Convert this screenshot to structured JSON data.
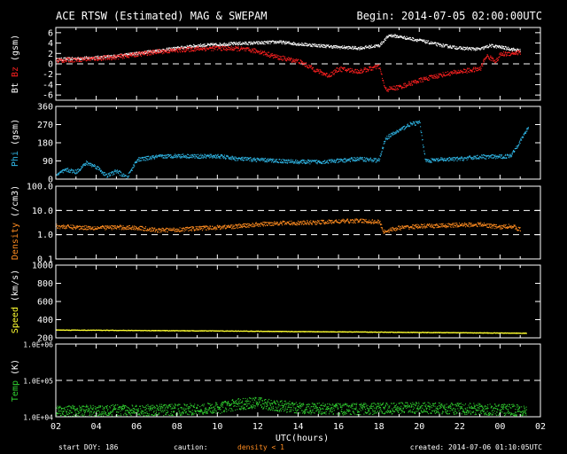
{
  "header": {
    "title": "ACE RTSW (Estimated) MAG & SWEPAM",
    "begin": "Begin: 2014-07-05 02:00:00UTC"
  },
  "footer": {
    "start_doy": "start DOY: 186",
    "caution": "caution:",
    "caution_note": "density < 1",
    "created": "created: 2014-07-06 01:10:05UTC"
  },
  "colors": {
    "background": "#000000",
    "axes": "#ffffff",
    "bt": "#ffffff",
    "bz": "#ff2020",
    "phi": "#30b8e8",
    "density": "#ff8c20",
    "speed": "#ffff30",
    "temp": "#30d030"
  },
  "chart_data": {
    "type": "scatter",
    "xlabel": "UTC(hours)",
    "x_ticks": [
      "02",
      "04",
      "06",
      "08",
      "10",
      "12",
      "14",
      "16",
      "18",
      "20",
      "22",
      "00",
      "02"
    ],
    "xlim": [
      0,
      24
    ],
    "panels": [
      {
        "id": "mag",
        "ylabel_parts": [
          {
            "text": "Bt",
            "color": "#ffffff"
          },
          {
            "text": "Bz",
            "color": "#ff2020"
          },
          {
            "text": "(gsm)",
            "color": "#ffffff"
          }
        ],
        "ylim": [
          -7,
          7
        ],
        "scale": "linear",
        "y_ticks": [
          {
            "v": 6,
            "label": "6"
          },
          {
            "v": 4,
            "label": "4"
          },
          {
            "v": 2,
            "label": "2"
          },
          {
            "v": 0,
            "label": "0"
          },
          {
            "v": -2,
            "label": "-2"
          },
          {
            "v": -4,
            "label": "-4"
          },
          {
            "v": -6,
            "label": "-6"
          }
        ],
        "dashed": [
          0
        ],
        "series": [
          {
            "name": "Bt",
            "color": "#ffffff",
            "style": "line",
            "noise": 0.3,
            "points": [
              [
                0,
                0.8
              ],
              [
                1,
                1.0
              ],
              [
                2,
                1.2
              ],
              [
                3,
                1.5
              ],
              [
                4,
                2.0
              ],
              [
                5,
                2.5
              ],
              [
                6,
                3.0
              ],
              [
                7,
                3.5
              ],
              [
                8,
                3.7
              ],
              [
                9,
                3.9
              ],
              [
                10,
                4.0
              ],
              [
                11,
                4.2
              ],
              [
                12,
                3.8
              ],
              [
                13,
                3.5
              ],
              [
                14,
                3.2
              ],
              [
                15,
                3.0
              ],
              [
                16,
                3.5
              ],
              [
                16.5,
                5.5
              ],
              [
                17,
                5.2
              ],
              [
                18,
                4.5
              ],
              [
                19,
                3.6
              ],
              [
                20,
                3.0
              ],
              [
                21,
                2.8
              ],
              [
                21.5,
                3.5
              ],
              [
                22,
                3.2
              ],
              [
                23,
                2.5
              ]
            ]
          },
          {
            "name": "Bz",
            "color": "#ff2020",
            "style": "line",
            "noise": 0.45,
            "points": [
              [
                0,
                0.6
              ],
              [
                1,
                0.8
              ],
              [
                2,
                1.0
              ],
              [
                3,
                1.3
              ],
              [
                4,
                1.8
              ],
              [
                5,
                2.3
              ],
              [
                6,
                2.6
              ],
              [
                7,
                2.9
              ],
              [
                8,
                3.0
              ],
              [
                9,
                2.9
              ],
              [
                10,
                2.4
              ],
              [
                11,
                1.2
              ],
              [
                12,
                0.5
              ],
              [
                12.5,
                -0.5
              ],
              [
                13,
                -1.5
              ],
              [
                13.5,
                -2.3
              ],
              [
                14,
                -1.0
              ],
              [
                15,
                -1.5
              ],
              [
                16,
                -0.5
              ],
              [
                16.3,
                -5.0
              ],
              [
                17,
                -4.5
              ],
              [
                18,
                -3.2
              ],
              [
                19,
                -2.2
              ],
              [
                20,
                -1.5
              ],
              [
                21,
                -1.0
              ],
              [
                21.3,
                1.5
              ],
              [
                21.8,
                0.5
              ],
              [
                22,
                1.8
              ],
              [
                23,
                2.2
              ]
            ]
          }
        ]
      },
      {
        "id": "phi",
        "ylabel_parts": [
          {
            "text": "Phi",
            "color": "#30b8e8"
          },
          {
            "text": "(gsm)",
            "color": "#ffffff"
          }
        ],
        "ylim": [
          0,
          360
        ],
        "scale": "linear",
        "y_ticks": [
          {
            "v": 360,
            "label": "360"
          },
          {
            "v": 270,
            "label": "270"
          },
          {
            "v": 180,
            "label": "180"
          },
          {
            "v": 90,
            "label": "90"
          },
          {
            "v": 0,
            "label": "0"
          }
        ],
        "dashed": [],
        "series": [
          {
            "name": "Phi",
            "color": "#30b8e8",
            "style": "line",
            "noise": 10,
            "points": [
              [
                0,
                20
              ],
              [
                0.5,
                45
              ],
              [
                1,
                35
              ],
              [
                1.5,
                80
              ],
              [
                2,
                60
              ],
              [
                2.5,
                15
              ],
              [
                3,
                40
              ],
              [
                3.5,
                5
              ],
              [
                4,
                95
              ],
              [
                5,
                110
              ],
              [
                6,
                115
              ],
              [
                7,
                112
              ],
              [
                8,
                113
              ],
              [
                9,
                100
              ],
              [
                10,
                95
              ],
              [
                11,
                90
              ],
              [
                12,
                85
              ],
              [
                13,
                85
              ],
              [
                14,
                90
              ],
              [
                15,
                100
              ],
              [
                16,
                92
              ],
              [
                16.3,
                200
              ],
              [
                16.8,
                230
              ],
              [
                17.5,
                270
              ],
              [
                18,
                280
              ],
              [
                18.3,
                90
              ],
              [
                19,
                95
              ],
              [
                20,
                100
              ],
              [
                21,
                110
              ],
              [
                22,
                110
              ],
              [
                22.5,
                115
              ],
              [
                23,
                190
              ],
              [
                23.4,
                260
              ]
            ]
          }
        ]
      },
      {
        "id": "density",
        "ylabel_parts": [
          {
            "text": "Density",
            "color": "#ff8c20"
          },
          {
            "text": "(/cm3)",
            "color": "#ffffff"
          }
        ],
        "ylim": [
          0.1,
          100
        ],
        "scale": "log",
        "y_ticks": [
          {
            "v": 100,
            "label": "100.0"
          },
          {
            "v": 10,
            "label": "10.0"
          },
          {
            "v": 1,
            "label": "1.0"
          },
          {
            "v": 0.1,
            "label": "0.1"
          }
        ],
        "dashed": [
          10,
          1
        ],
        "series": [
          {
            "name": "Density",
            "color": "#ff8c20",
            "style": "line",
            "noise": 0.35,
            "points": [
              [
                0,
                2.2
              ],
              [
                1,
                2.0
              ],
              [
                2,
                1.9
              ],
              [
                3,
                2.0
              ],
              [
                4,
                1.9
              ],
              [
                5,
                1.5
              ],
              [
                6,
                1.6
              ],
              [
                7,
                1.8
              ],
              [
                8,
                2.0
              ],
              [
                9,
                2.2
              ],
              [
                10,
                2.6
              ],
              [
                11,
                3.0
              ],
              [
                12,
                3.0
              ],
              [
                13,
                3.2
              ],
              [
                14,
                3.5
              ],
              [
                15,
                3.7
              ],
              [
                16,
                3.3
              ],
              [
                16.2,
                1.3
              ],
              [
                17,
                1.9
              ],
              [
                18,
                2.2
              ],
              [
                19,
                2.3
              ],
              [
                20,
                2.5
              ],
              [
                21,
                2.6
              ],
              [
                22,
                2.0
              ],
              [
                22.5,
                2.3
              ],
              [
                23,
                1.6
              ]
            ]
          }
        ]
      },
      {
        "id": "speed",
        "ylabel_parts": [
          {
            "text": "Speed",
            "color": "#ffff30"
          },
          {
            "text": "(km/s)",
            "color": "#ffffff"
          }
        ],
        "ylim": [
          200,
          1000
        ],
        "scale": "linear",
        "y_ticks": [
          {
            "v": 1000,
            "label": "1000"
          },
          {
            "v": 800,
            "label": "800"
          },
          {
            "v": 600,
            "label": "600"
          },
          {
            "v": 400,
            "label": "400"
          },
          {
            "v": 200,
            "label": "200"
          }
        ],
        "dashed": [],
        "series": [
          {
            "name": "Speed",
            "color": "#ffff30",
            "style": "line",
            "noise": 3,
            "points": [
              [
                0,
                285
              ],
              [
                4,
                280
              ],
              [
                8,
                275
              ],
              [
                12,
                268
              ],
              [
                16,
                262
              ],
              [
                20,
                255
              ],
              [
                23.3,
                250
              ]
            ]
          }
        ]
      },
      {
        "id": "temp",
        "ylabel_parts": [
          {
            "text": "Temp",
            "color": "#30d030"
          },
          {
            "text": "(K)",
            "color": "#ffffff"
          }
        ],
        "ylim": [
          10000,
          1000000
        ],
        "scale": "log",
        "y_ticks": [
          {
            "v": 1000000,
            "label": "1.0E+06"
          },
          {
            "v": 100000,
            "label": "1.0E+05"
          },
          {
            "v": 10000,
            "label": "1.0E+04"
          }
        ],
        "dashed": [
          100000
        ],
        "series": [
          {
            "name": "Temp",
            "color": "#30d030",
            "style": "scatter",
            "noise": 0.35,
            "points": [
              [
                0,
                14000
              ],
              [
                2,
                14500
              ],
              [
                4,
                15000
              ],
              [
                6,
                15500
              ],
              [
                8,
                17000
              ],
              [
                9,
                22000
              ],
              [
                10,
                24000
              ],
              [
                11,
                20000
              ],
              [
                12,
                17000
              ],
              [
                14,
                16000
              ],
              [
                16,
                16500
              ],
              [
                18,
                17500
              ],
              [
                20,
                16500
              ],
              [
                22,
                15500
              ],
              [
                23.3,
                15000
              ]
            ]
          }
        ]
      }
    ]
  }
}
